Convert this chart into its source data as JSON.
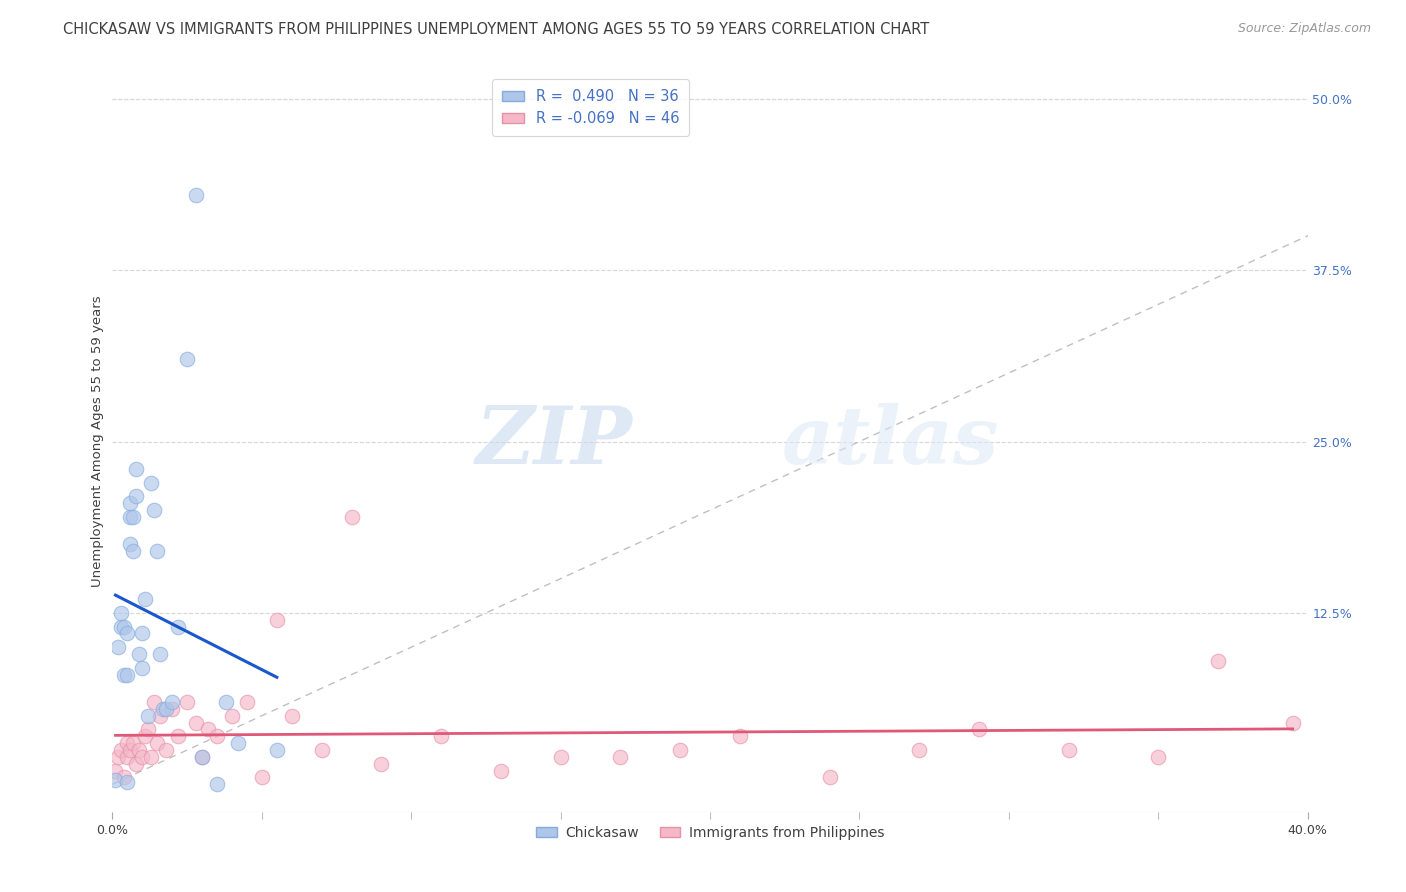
{
  "title": "CHICKASAW VS IMMIGRANTS FROM PHILIPPINES UNEMPLOYMENT AMONG AGES 55 TO 59 YEARS CORRELATION CHART",
  "source": "Source: ZipAtlas.com",
  "ylabel": "Unemployment Among Ages 55 to 59 years",
  "ylabel_right_labels": [
    "50.0%",
    "37.5%",
    "25.0%",
    "12.5%"
  ],
  "ylabel_right_values": [
    0.5,
    0.375,
    0.25,
    0.125
  ],
  "xlim": [
    0.0,
    0.4
  ],
  "ylim": [
    -0.02,
    0.52
  ],
  "legend_text_color": "#4472c4",
  "chickasaw_color": "#aec6e8",
  "chickasaw_edge_color": "#85abe0",
  "philippines_color": "#f4b8c8",
  "philippines_edge_color": "#e890a8",
  "chickasaw_line_color": "#1a56cc",
  "philippines_line_color": "#e05878",
  "diagonal_color": "#c0c0c0",
  "watermark_zip": "ZIP",
  "watermark_atlas": "atlas",
  "chickasaw_x": [
    0.001,
    0.002,
    0.003,
    0.003,
    0.004,
    0.004,
    0.005,
    0.005,
    0.005,
    0.006,
    0.006,
    0.006,
    0.007,
    0.007,
    0.008,
    0.008,
    0.009,
    0.01,
    0.01,
    0.011,
    0.012,
    0.013,
    0.014,
    0.015,
    0.016,
    0.017,
    0.018,
    0.02,
    0.022,
    0.025,
    0.028,
    0.03,
    0.035,
    0.038,
    0.042,
    0.055
  ],
  "chickasaw_y": [
    0.003,
    0.1,
    0.115,
    0.125,
    0.08,
    0.115,
    0.08,
    0.11,
    0.002,
    0.195,
    0.175,
    0.205,
    0.195,
    0.17,
    0.23,
    0.21,
    0.095,
    0.085,
    0.11,
    0.135,
    0.05,
    0.22,
    0.2,
    0.17,
    0.095,
    0.055,
    0.055,
    0.06,
    0.115,
    0.31,
    0.43,
    0.02,
    0.0,
    0.06,
    0.03,
    0.025
  ],
  "philippines_x": [
    0.001,
    0.002,
    0.003,
    0.004,
    0.005,
    0.005,
    0.006,
    0.007,
    0.008,
    0.009,
    0.01,
    0.011,
    0.012,
    0.013,
    0.014,
    0.015,
    0.016,
    0.018,
    0.02,
    0.022,
    0.025,
    0.028,
    0.03,
    0.032,
    0.035,
    0.04,
    0.045,
    0.05,
    0.055,
    0.06,
    0.07,
    0.08,
    0.09,
    0.11,
    0.13,
    0.15,
    0.17,
    0.19,
    0.21,
    0.24,
    0.27,
    0.29,
    0.32,
    0.35,
    0.37,
    0.395
  ],
  "philippines_y": [
    0.01,
    0.02,
    0.025,
    0.005,
    0.03,
    0.02,
    0.025,
    0.03,
    0.015,
    0.025,
    0.02,
    0.035,
    0.04,
    0.02,
    0.06,
    0.03,
    0.05,
    0.025,
    0.055,
    0.035,
    0.06,
    0.045,
    0.02,
    0.04,
    0.035,
    0.05,
    0.06,
    0.005,
    0.12,
    0.05,
    0.025,
    0.195,
    0.015,
    0.035,
    0.01,
    0.02,
    0.02,
    0.025,
    0.035,
    0.005,
    0.025,
    0.04,
    0.025,
    0.02,
    0.09,
    0.045
  ],
  "marker_size": 110,
  "marker_alpha": 0.65,
  "grid_color": "#d8d8d8",
  "bg_color": "#ffffff",
  "font_color": "#404040",
  "title_fontsize": 10.5,
  "axis_label_fontsize": 9.5,
  "tick_fontsize": 9,
  "source_fontsize": 9,
  "legend_r1": "R =  0.490   N = 36",
  "legend_r2": "R = -0.069   N = 46",
  "bottom_label1": "Chickasaw",
  "bottom_label2": "Immigrants from Philippines",
  "x_minor_ticks": [
    0.05,
    0.1,
    0.15,
    0.2,
    0.25,
    0.3,
    0.35
  ]
}
